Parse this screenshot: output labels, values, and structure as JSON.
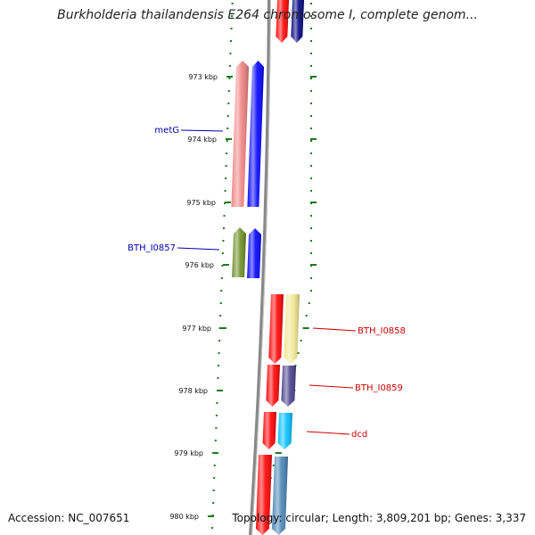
{
  "header": {
    "title": "Burkholderia thailandensis E264 chromosome I, complete genom..."
  },
  "footer": {
    "accession": "Accession: NC_007651",
    "summary": "Topology: circular; Length: 3,809,201 bp; Genes: 3,337"
  },
  "colors": {
    "scale_ticks": "#1e7a1e",
    "backbone": "#888888",
    "left_label": "#0000aa",
    "right_label": "#cc0000"
  },
  "scale_ticks": [
    {
      "label": "973 kbp"
    },
    {
      "label": "974 kbp"
    },
    {
      "label": "975 kbp"
    },
    {
      "label": "976 kbp"
    },
    {
      "label": "977 kbp"
    },
    {
      "label": "978 kbp"
    },
    {
      "label": "979 kbp"
    },
    {
      "label": "980 kbp"
    }
  ],
  "genes": [
    {
      "strand": "reverse",
      "label": "",
      "color": "#ff0000"
    },
    {
      "strand": "reverse",
      "label": "",
      "color": "#000080"
    },
    {
      "strand": "forward",
      "label": "",
      "color": "#f08080"
    },
    {
      "strand": "forward",
      "label": "metG",
      "color": "#0000ff"
    },
    {
      "strand": "forward",
      "label": "",
      "color": "#6b8e23"
    },
    {
      "strand": "forward",
      "label": "BTH_I0857",
      "color": "#0000ff"
    },
    {
      "strand": "reverse",
      "label": "",
      "color": "#ff0000"
    },
    {
      "strand": "reverse",
      "label": "BTH_I0858",
      "color": "#f0e68c"
    },
    {
      "strand": "reverse",
      "label": "",
      "color": "#ff0000"
    },
    {
      "strand": "reverse",
      "label": "BTH_I0859",
      "color": "#483d8b"
    },
    {
      "strand": "reverse",
      "label": "",
      "color": "#ff0000"
    },
    {
      "strand": "reverse",
      "label": "dcd",
      "color": "#00bfff"
    },
    {
      "strand": "reverse",
      "label": "",
      "color": "#ff0000"
    },
    {
      "strand": "reverse",
      "label": "",
      "color": "#4682b4"
    }
  ]
}
